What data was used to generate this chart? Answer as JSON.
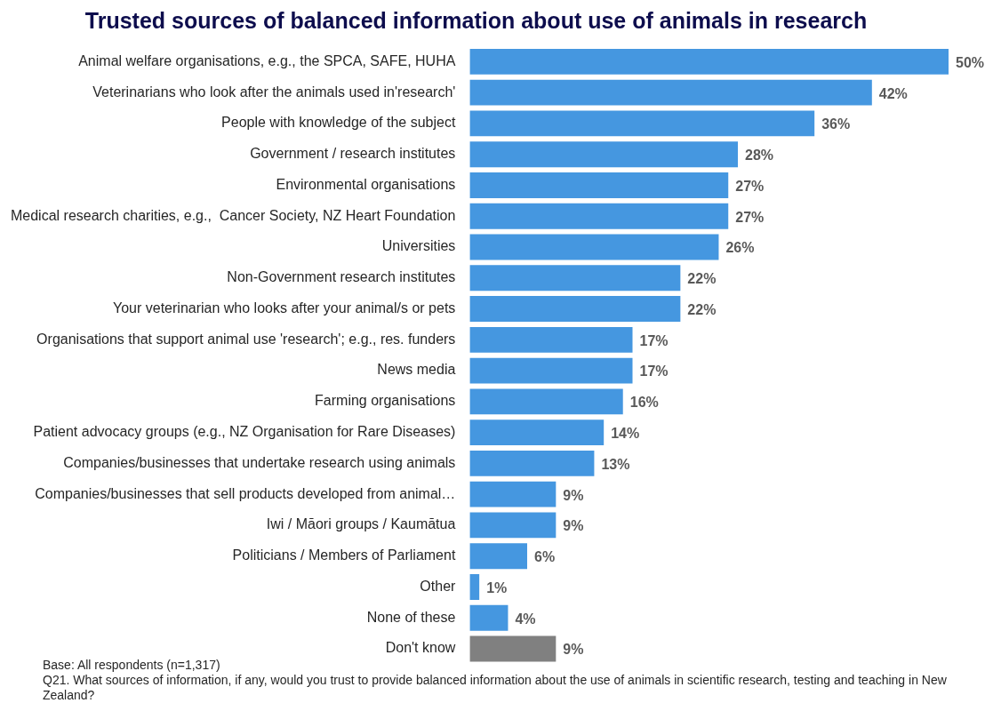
{
  "chart_data": {
    "type": "bar",
    "orientation": "horizontal",
    "title": "Trusted sources of balanced information about use of animals in research",
    "categories": [
      "Animal welfare organisations, e.g., the SPCA, SAFE, HUHA",
      "Veterinarians who look after the animals used in'research'",
      "People with knowledge of the subject",
      "Government / research institutes",
      "Environmental organisations",
      "Medical research charities, e.g.,  Cancer Society, NZ Heart Foundation",
      "Universities",
      "Non-Government research institutes",
      "Your veterinarian who looks after your animal/s or pets",
      "Organisations that support animal use 'research'; e.g., res. funders",
      "News media",
      "Farming organisations",
      "Patient advocacy groups (e.g., NZ Organisation for Rare Diseases)",
      "Companies/businesses that undertake research using animals",
      "Companies/businesses that sell products developed from animal…",
      "Iwi / Māori groups / Kaumātua",
      "Politicians / Members of Parliament",
      "Other",
      "None of these",
      "Don't know"
    ],
    "values": [
      50,
      42,
      36,
      28,
      27,
      27,
      26,
      22,
      22,
      17,
      17,
      16,
      14,
      13,
      9,
      9,
      6,
      1,
      4,
      9
    ],
    "value_labels": [
      "50%",
      "42%",
      "36%",
      "28%",
      "27%",
      "27%",
      "26%",
      "22%",
      "22%",
      "17%",
      "17%",
      "16%",
      "14%",
      "13%",
      "9%",
      "9%",
      "6%",
      "1%",
      "4%",
      "9%"
    ],
    "colors": [
      "#4597e0",
      "#4597e0",
      "#4597e0",
      "#4597e0",
      "#4597e0",
      "#4597e0",
      "#4597e0",
      "#4597e0",
      "#4597e0",
      "#4597e0",
      "#4597e0",
      "#4597e0",
      "#4597e0",
      "#4597e0",
      "#4597e0",
      "#4597e0",
      "#4597e0",
      "#4597e0",
      "#4597e0",
      "#808080"
    ],
    "legend": false,
    "annotations": [
      "Base: All respondents (n=1,317)",
      "Q21. What sources of information, if any, would you trust to provide balanced information about the use of animals in scientific research, testing and teaching in New Zealand?"
    ]
  }
}
